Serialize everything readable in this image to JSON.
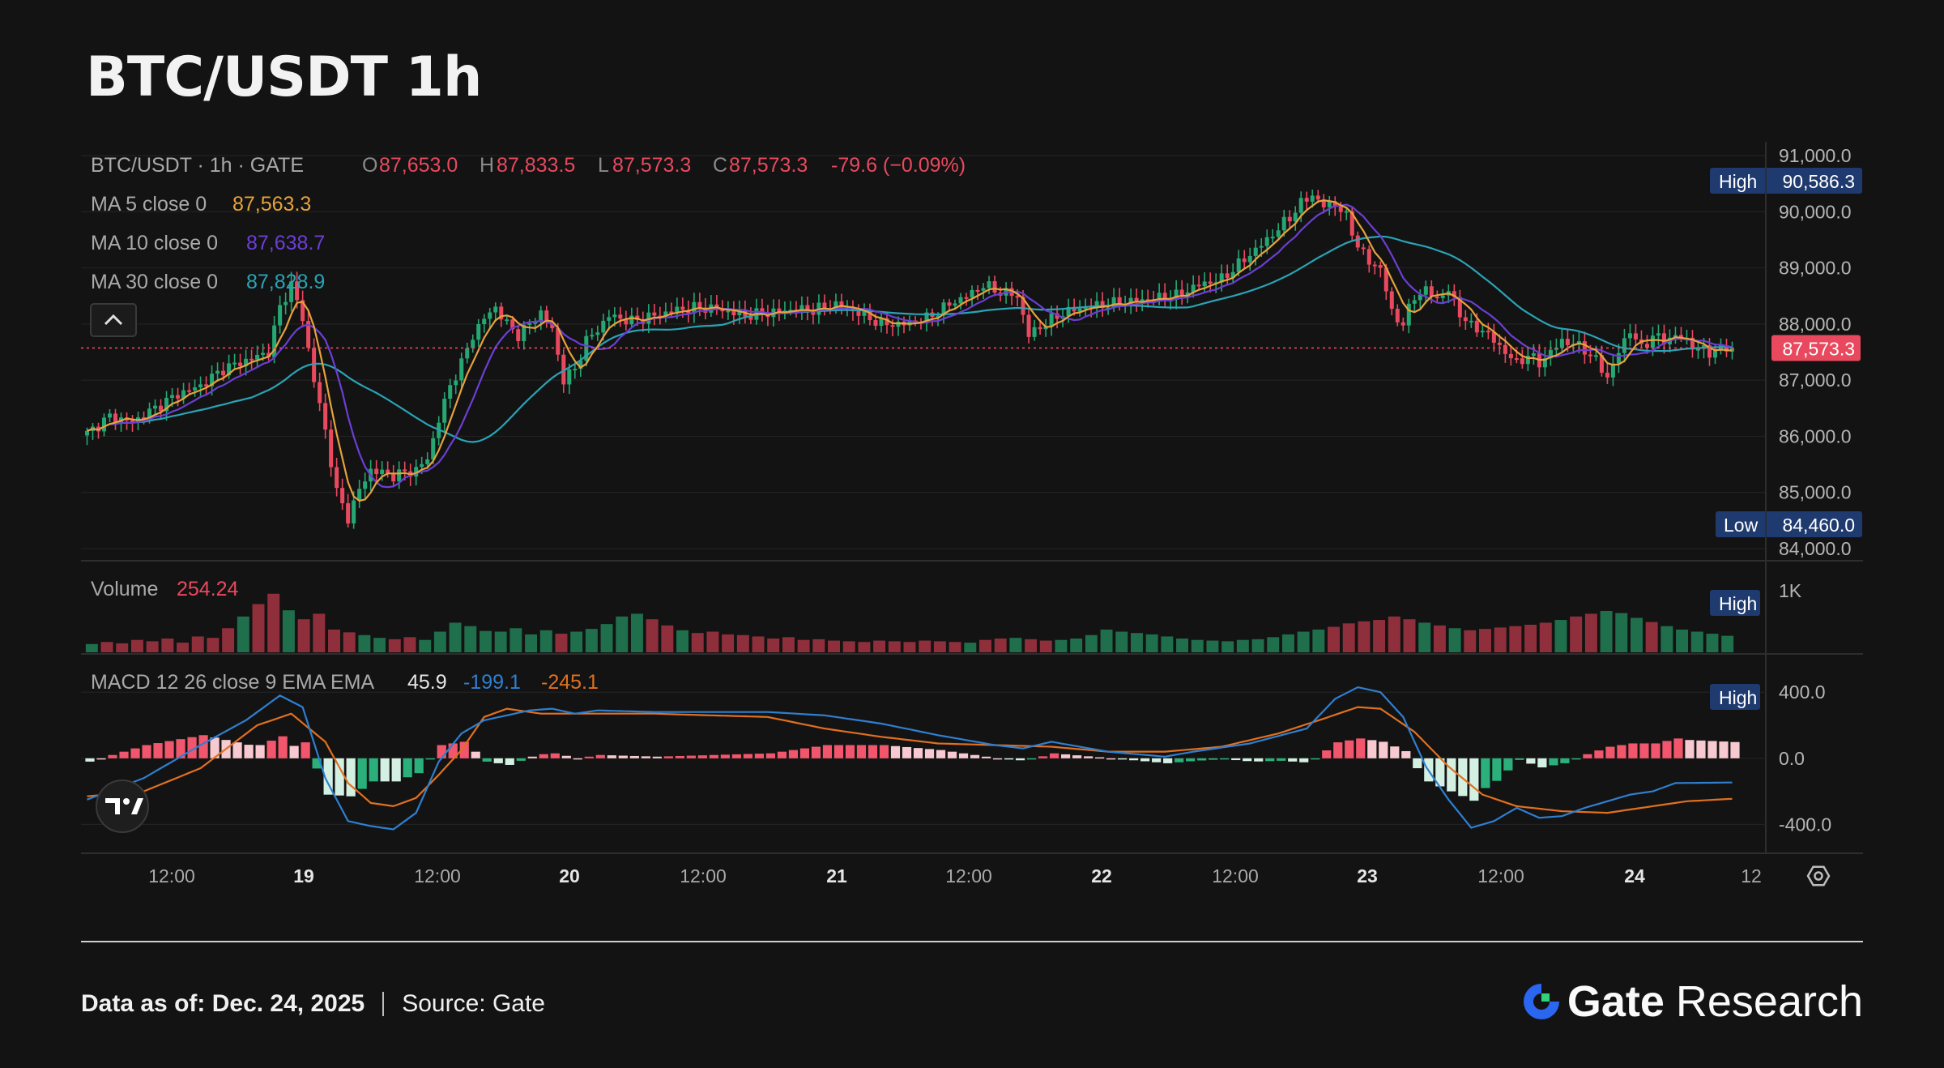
{
  "header": {
    "title": "BTC/USDT 1h"
  },
  "legend": {
    "symbol": "BTC/USDT · 1h · GATE",
    "o_label": "O",
    "o_value": "87,653.0",
    "h_label": "H",
    "h_value": "87,833.5",
    "l_label": "L",
    "l_value": "87,573.3",
    "c_label": "C",
    "c_value": "87,573.3",
    "change": "-79.6 (−0.09%)",
    "ma5_label": "MA 5 close 0",
    "ma5_value": "87,563.3",
    "ma10_label": "MA 10 close 0",
    "ma10_value": "87,638.7",
    "ma30_label": "MA 30 close 0",
    "ma30_value": "87,828.9",
    "collapse_icon": "chevron-up-icon"
  },
  "price_badges": {
    "high_label": "High",
    "high_value": "90,586.3",
    "low_label": "Low",
    "low_value": "84,460.0",
    "last_value": "87,573.3"
  },
  "volume_panel": {
    "label": "Volume",
    "value": "254.24",
    "badge": "High",
    "axis_tick": "1K"
  },
  "macd_panel": {
    "label": "MACD 12 26 close 9 EMA EMA",
    "hist_value": "45.9",
    "macd_value": "-199.1",
    "signal_value": "-245.1",
    "badge": "High"
  },
  "tv_logo_icon": "tradingview-logo-icon",
  "settings_icon": "gear-icon",
  "colors": {
    "up": "#26a672",
    "down": "#e8495e",
    "ma5": "#e6a23c",
    "ma10": "#6b3fd4",
    "ma30": "#2aa3b5",
    "macd": "#2f7fd0",
    "signal": "#e07020",
    "badge_bg": "#1e3a6e"
  },
  "chart_data": [
    {
      "type": "candlestick",
      "title": "BTC/USDT 1h",
      "y_ticks": [
        "91,000.0",
        "90,000.0",
        "89,000.0",
        "88,000.0",
        "87,000.0",
        "86,000.0",
        "85,000.0",
        "84,000.0"
      ],
      "ylim": [
        84000,
        91000
      ],
      "x_ticks": [
        "12:00",
        "19",
        "12:00",
        "20",
        "12:00",
        "21",
        "12:00",
        "22",
        "12:00",
        "23",
        "12:00",
        "24",
        "12"
      ],
      "series": [
        {
          "name": "price",
          "close_anchors": [
            [
              0,
              86050
            ],
            [
              4,
              86350
            ],
            [
              8,
              86250
            ],
            [
              12,
              86500
            ],
            [
              16,
              86750
            ],
            [
              20,
              86900
            ],
            [
              24,
              87200
            ],
            [
              28,
              87350
            ],
            [
              32,
              87500
            ],
            [
              34,
              88300
            ],
            [
              36,
              88700
            ],
            [
              38,
              88100
            ],
            [
              40,
              87000
            ],
            [
              42,
              86100
            ],
            [
              44,
              85000
            ],
            [
              46,
              84550
            ],
            [
              48,
              85050
            ],
            [
              50,
              85400
            ],
            [
              54,
              85300
            ],
            [
              58,
              85400
            ],
            [
              60,
              85600
            ],
            [
              62,
              86300
            ],
            [
              64,
              86900
            ],
            [
              66,
              87300
            ],
            [
              68,
              87800
            ],
            [
              70,
              88100
            ],
            [
              72,
              88300
            ],
            [
              74,
              88000
            ],
            [
              76,
              87800
            ],
            [
              80,
              88200
            ],
            [
              82,
              87900
            ],
            [
              84,
              87000
            ],
            [
              86,
              87200
            ],
            [
              88,
              87700
            ],
            [
              90,
              87900
            ],
            [
              92,
              88150
            ],
            [
              96,
              88050
            ],
            [
              100,
              88150
            ],
            [
              104,
              88250
            ],
            [
              108,
              88300
            ],
            [
              112,
              88250
            ],
            [
              116,
              88150
            ],
            [
              120,
              88200
            ],
            [
              124,
              88250
            ],
            [
              128,
              88250
            ],
            [
              132,
              88350
            ],
            [
              136,
              88200
            ],
            [
              140,
              88000
            ],
            [
              144,
              88000
            ],
            [
              148,
              88100
            ],
            [
              152,
              88350
            ],
            [
              156,
              88550
            ],
            [
              158,
              88700
            ],
            [
              160,
              88600
            ],
            [
              164,
              88500
            ],
            [
              166,
              87800
            ],
            [
              168,
              87950
            ],
            [
              172,
              88200
            ],
            [
              176,
              88300
            ],
            [
              180,
              88350
            ],
            [
              184,
              88400
            ],
            [
              188,
              88450
            ],
            [
              192,
              88500
            ],
            [
              196,
              88700
            ],
            [
              200,
              88800
            ],
            [
              204,
              89150
            ],
            [
              208,
              89500
            ],
            [
              212,
              89900
            ],
            [
              214,
              90150
            ],
            [
              216,
              90300
            ],
            [
              218,
              90100
            ],
            [
              220,
              90150
            ],
            [
              222,
              89900
            ],
            [
              224,
              89400
            ],
            [
              226,
              89100
            ],
            [
              228,
              89000
            ],
            [
              230,
              88200
            ],
            [
              232,
              88000
            ],
            [
              234,
              88500
            ],
            [
              236,
              88600
            ],
            [
              238,
              88450
            ],
            [
              240,
              88600
            ],
            [
              242,
              88200
            ],
            [
              244,
              87950
            ],
            [
              246,
              87900
            ],
            [
              248,
              87700
            ],
            [
              250,
              87500
            ],
            [
              252,
              87300
            ],
            [
              254,
              87450
            ],
            [
              256,
              87300
            ],
            [
              258,
              87500
            ],
            [
              260,
              87700
            ],
            [
              262,
              87650
            ],
            [
              264,
              87550
            ],
            [
              266,
              87350
            ],
            [
              268,
              87050
            ],
            [
              270,
              87500
            ],
            [
              272,
              87900
            ],
            [
              274,
              87550
            ],
            [
              276,
              87800
            ],
            [
              278,
              87700
            ],
            [
              280,
              87800
            ],
            [
              282,
              87700
            ],
            [
              284,
              87550
            ],
            [
              286,
              87500
            ],
            [
              288,
              87550
            ],
            [
              290,
              87573
            ]
          ]
        }
      ]
    },
    {
      "type": "bar",
      "title": "Volume",
      "y_ticks": [
        "1K"
      ],
      "values_note_free": true,
      "values": [
        120,
        150,
        130,
        180,
        160,
        200,
        140,
        230,
        210,
        350,
        520,
        700,
        850,
        610,
        480,
        560,
        330,
        290,
        250,
        210,
        190,
        220,
        180,
        300,
        430,
        380,
        310,
        300,
        350,
        260,
        320,
        270,
        300,
        340,
        410,
        520,
        560,
        480,
        390,
        320,
        280,
        300,
        260,
        250,
        230,
        200,
        220,
        180,
        190,
        170,
        160,
        150,
        170,
        160,
        150,
        170,
        160,
        150,
        140,
        180,
        200,
        210,
        190,
        170,
        180,
        200,
        250,
        330,
        300,
        280,
        260,
        230,
        200,
        180,
        170,
        160,
        180,
        190,
        220,
        260,
        300,
        330,
        370,
        420,
        450,
        470,
        520,
        480,
        430,
        390,
        350,
        320,
        340,
        360,
        380,
        400,
        430,
        470,
        520,
        560,
        600,
        570,
        500,
        440,
        380,
        330,
        300,
        270,
        240
      ]
    },
    {
      "type": "bar+line",
      "title": "MACD 12 26 close 9 EMA EMA",
      "y_ticks": [
        "400.0",
        "0.0",
        "-400.0"
      ],
      "ylim": [
        -560,
        460
      ],
      "series": [
        {
          "name": "MACD",
          "anchors": [
            [
              0,
              -250
            ],
            [
              10,
              -120
            ],
            [
              20,
              80
            ],
            [
              28,
              230
            ],
            [
              34,
              380
            ],
            [
              38,
              310
            ],
            [
              42,
              -120
            ],
            [
              46,
              -380
            ],
            [
              50,
              -410
            ],
            [
              54,
              -430
            ],
            [
              58,
              -330
            ],
            [
              62,
              -20
            ],
            [
              66,
              150
            ],
            [
              70,
              230
            ],
            [
              74,
              260
            ],
            [
              78,
              290
            ],
            [
              82,
              300
            ],
            [
              86,
              270
            ],
            [
              90,
              290
            ],
            [
              100,
              280
            ],
            [
              110,
              280
            ],
            [
              120,
              280
            ],
            [
              130,
              260
            ],
            [
              140,
              210
            ],
            [
              150,
              140
            ],
            [
              160,
              80
            ],
            [
              165,
              60
            ],
            [
              170,
              100
            ],
            [
              180,
              40
            ],
            [
              190,
              10
            ],
            [
              195,
              40
            ],
            [
              205,
              90
            ],
            [
              215,
              180
            ],
            [
              220,
              360
            ],
            [
              224,
              430
            ],
            [
              228,
              400
            ],
            [
              232,
              250
            ],
            [
              236,
              -50
            ],
            [
              240,
              -250
            ],
            [
              244,
              -420
            ],
            [
              248,
              -380
            ],
            [
              252,
              -300
            ],
            [
              256,
              -360
            ],
            [
              260,
              -350
            ],
            [
              264,
              -300
            ],
            [
              268,
              -260
            ],
            [
              272,
              -220
            ],
            [
              276,
              -200
            ],
            [
              280,
              -150
            ]
          ]
        },
        {
          "name": "Signal",
          "anchors": [
            [
              0,
              -230
            ],
            [
              10,
              -200
            ],
            [
              20,
              -60
            ],
            [
              30,
              200
            ],
            [
              36,
              270
            ],
            [
              42,
              100
            ],
            [
              46,
              -150
            ],
            [
              50,
              -270
            ],
            [
              54,
              -290
            ],
            [
              58,
              -240
            ],
            [
              62,
              -100
            ],
            [
              66,
              50
            ],
            [
              70,
              250
            ],
            [
              74,
              300
            ],
            [
              80,
              270
            ],
            [
              90,
              270
            ],
            [
              100,
              270
            ],
            [
              110,
              260
            ],
            [
              120,
              250
            ],
            [
              130,
              180
            ],
            [
              140,
              130
            ],
            [
              150,
              90
            ],
            [
              160,
              80
            ],
            [
              170,
              70
            ],
            [
              180,
              40
            ],
            [
              190,
              40
            ],
            [
              200,
              70
            ],
            [
              210,
              150
            ],
            [
              218,
              240
            ],
            [
              224,
              310
            ],
            [
              228,
              300
            ],
            [
              234,
              160
            ],
            [
              240,
              -50
            ],
            [
              246,
              -220
            ],
            [
              252,
              -290
            ],
            [
              260,
              -320
            ],
            [
              268,
              -330
            ],
            [
              276,
              -290
            ],
            [
              282,
              -260
            ],
            [
              290,
              -245
            ]
          ]
        }
      ]
    }
  ],
  "footer": {
    "data_label": "Data as of:",
    "date": "Dec. 24, 2025",
    "source_label": "Source:",
    "source": "Gate",
    "brand_name": "Gate",
    "brand_suffix": "Research",
    "brand_icon": "gate-logo-icon"
  }
}
